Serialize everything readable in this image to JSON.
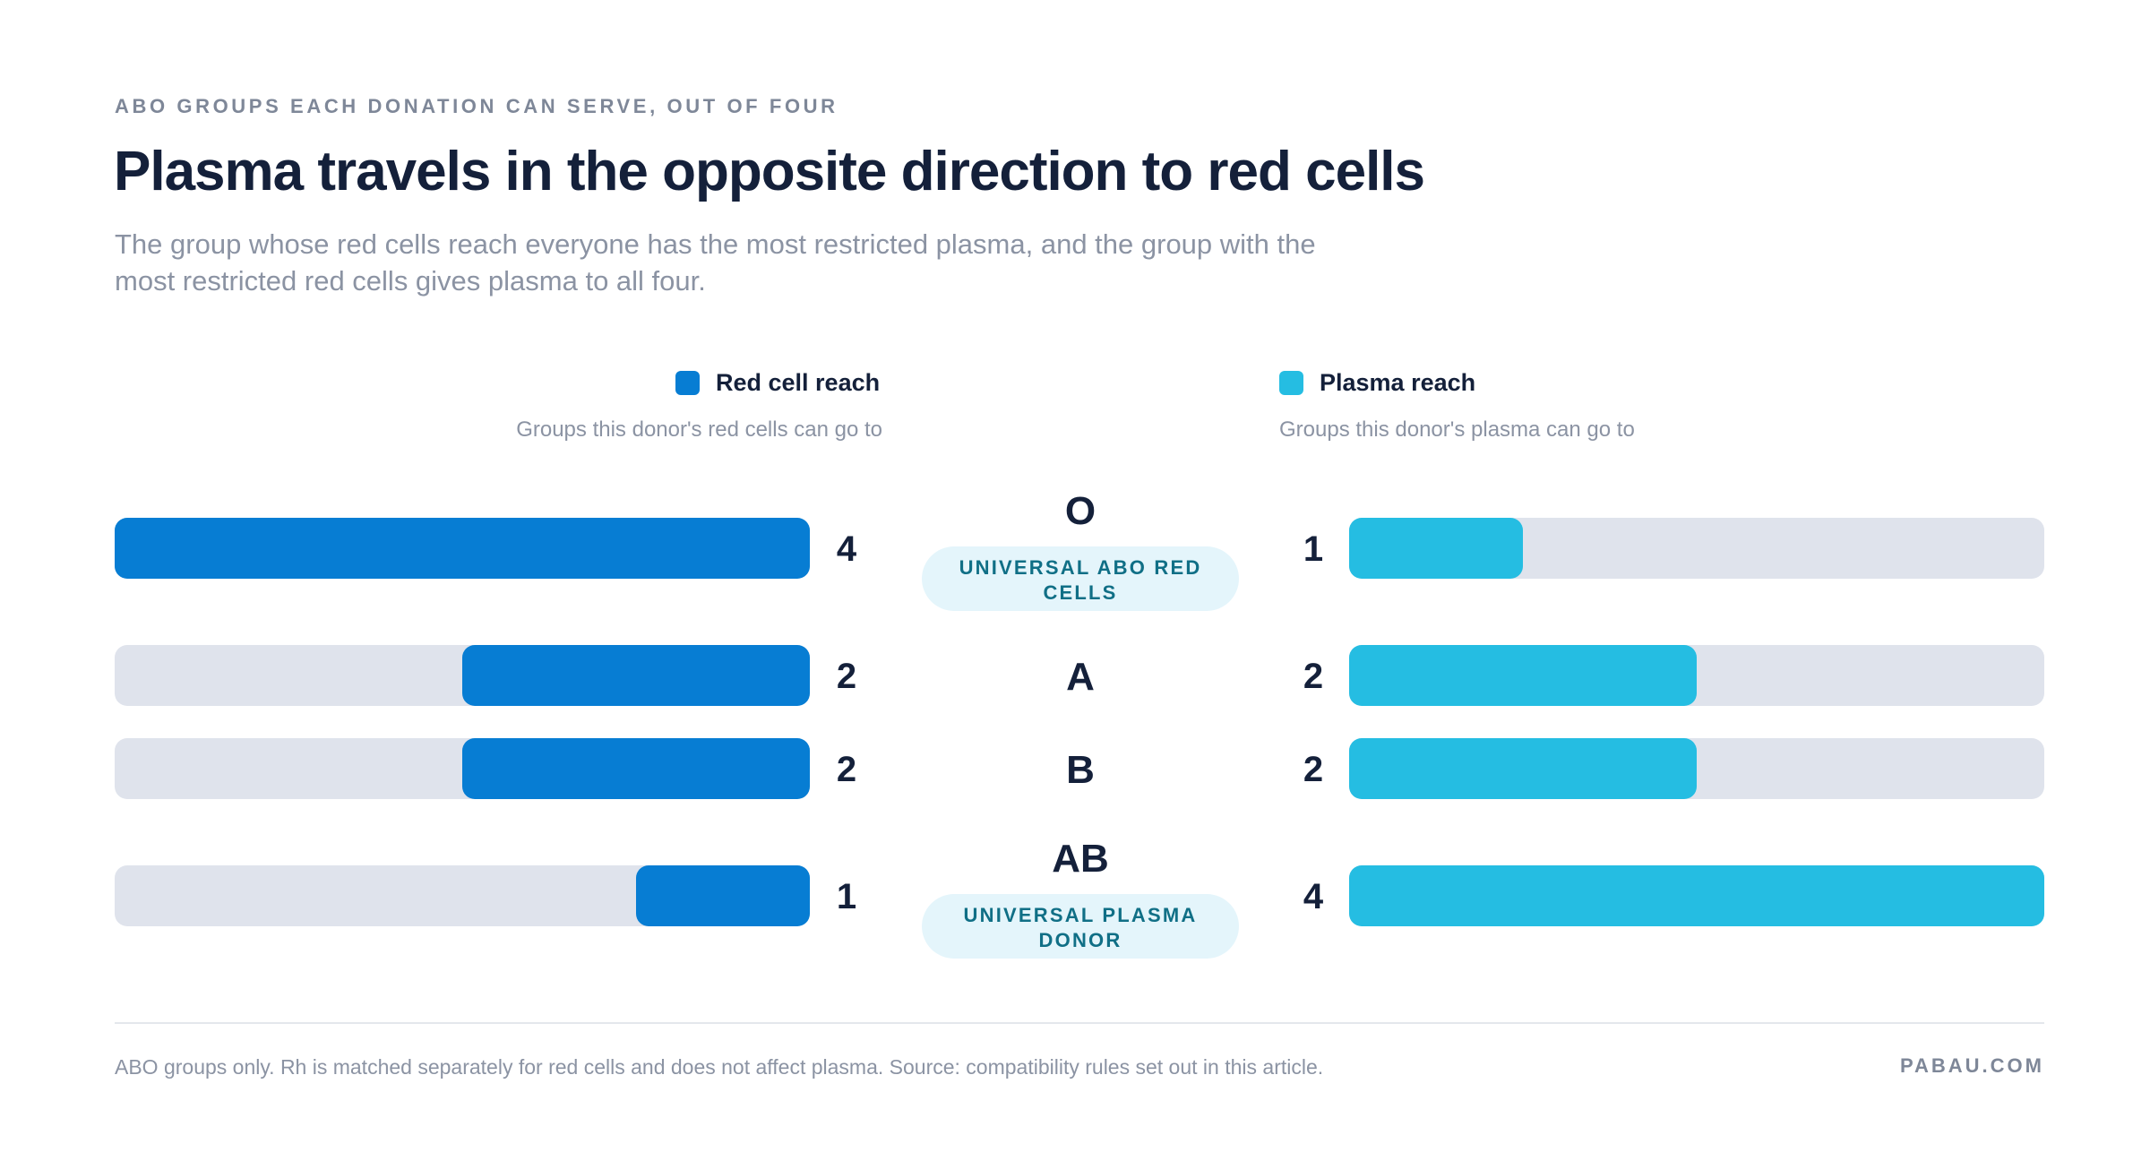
{
  "header": {
    "eyebrow": "ABO GROUPS EACH DONATION CAN SERVE, OUT OF FOUR",
    "title": "Plasma travels in the opposite direction to red cells",
    "subtitle": "The group whose red cells reach everyone has the most restricted plasma, and the group with the most restricted red cells gives plasma to all four."
  },
  "legend": {
    "red_cell": {
      "label": "Red cell reach",
      "sublabel": "Groups this donor's red cells can go to",
      "color": "#077dd3"
    },
    "plasma": {
      "label": "Plasma reach",
      "sublabel": "Groups this donor's plasma can go to",
      "color": "#25bde2"
    }
  },
  "chart_data": {
    "type": "bar",
    "orientation": "horizontal-diverging",
    "max": 4,
    "track_color": "#dfe3ec",
    "categories": [
      "O",
      "A",
      "B",
      "AB"
    ],
    "badges": [
      "UNIVERSAL ABO RED CELLS",
      "",
      "",
      "UNIVERSAL PLASMA DONOR"
    ],
    "series": [
      {
        "name": "Red cell reach",
        "values": [
          4,
          2,
          2,
          1
        ],
        "color": "#077dd3"
      },
      {
        "name": "Plasma reach",
        "values": [
          1,
          2,
          2,
          4
        ],
        "color": "#25bde2"
      }
    ]
  },
  "footer": {
    "note": "ABO groups only. Rh is matched separately for red cells and does not affect plasma. Source: compatibility rules set out in this article.",
    "brand": "PABAU.COM"
  }
}
